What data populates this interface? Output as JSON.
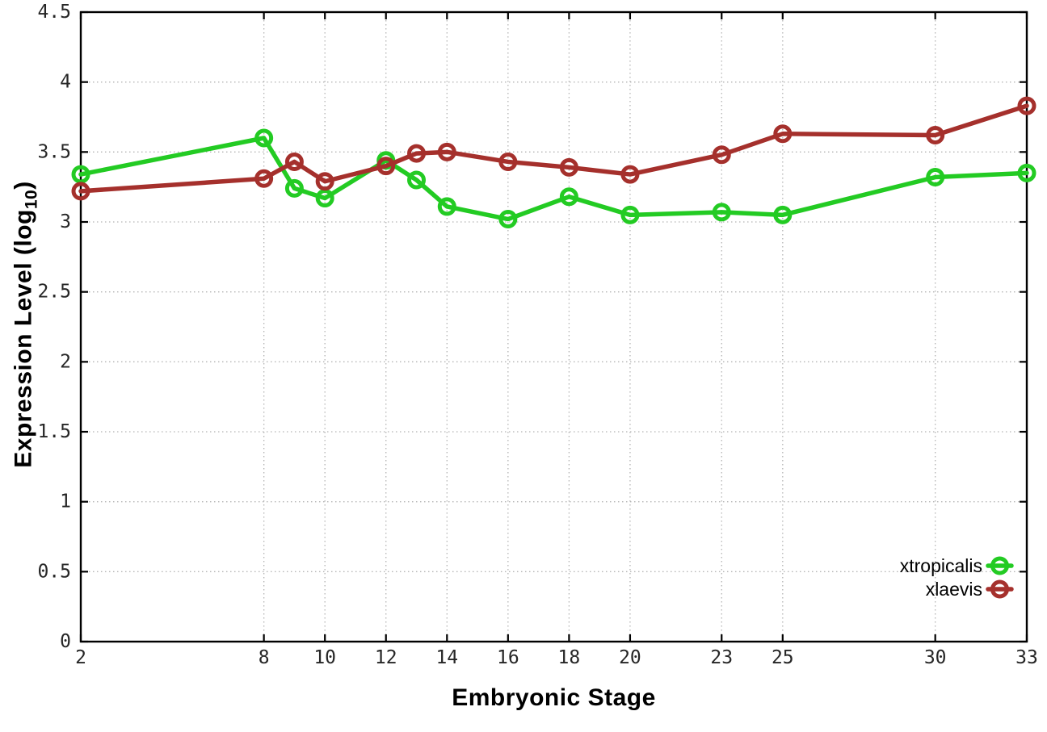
{
  "figure": {
    "background": "#ffffff"
  },
  "chart_data": {
    "type": "line",
    "title": "",
    "xlabel": "Embryonic Stage",
    "ylabel": {
      "prefix": "Expression Level (log",
      "subscript": "10",
      "suffix": ")"
    },
    "xlim": [
      2,
      33
    ],
    "ylim": [
      0,
      4.5
    ],
    "grid": true,
    "grid_style": "dotted",
    "grid_color": "#b4b4b4",
    "axis_color": "#000000",
    "tick_label_color": "#262626",
    "legend_position": "bottom-right-inside",
    "x": [
      2,
      8,
      9,
      10,
      12,
      13,
      14,
      16,
      18,
      20,
      23,
      25,
      30,
      33
    ],
    "x_tick_values": [
      2,
      8,
      10,
      12,
      14,
      16,
      18,
      20,
      23,
      25,
      30,
      33
    ],
    "x_tick_labels": [
      "2",
      "8",
      "10",
      "12",
      "14",
      "16",
      "18",
      "20",
      "23",
      "25",
      "30",
      "33"
    ],
    "y_tick_values": [
      0,
      0.5,
      1,
      1.5,
      2,
      2.5,
      3,
      3.5,
      4,
      4.5
    ],
    "y_tick_labels": [
      "0",
      "0.5",
      "1",
      "1.5",
      "2",
      "2.5",
      "3",
      "3.5",
      "4",
      "4.5"
    ],
    "series": [
      {
        "name": "xtropicalis",
        "color": "#23cb23",
        "marker": "open-circle",
        "values": [
          3.34,
          3.6,
          3.24,
          3.17,
          3.44,
          3.3,
          3.11,
          3.02,
          3.18,
          3.05,
          3.07,
          3.05,
          3.32,
          3.35
        ]
      },
      {
        "name": "xlaevis",
        "color": "#a5302c",
        "marker": "open-circle",
        "values": [
          3.22,
          3.31,
          3.43,
          3.29,
          3.4,
          3.49,
          3.5,
          3.43,
          3.39,
          3.34,
          3.48,
          3.63,
          3.62,
          3.83
        ]
      }
    ]
  }
}
